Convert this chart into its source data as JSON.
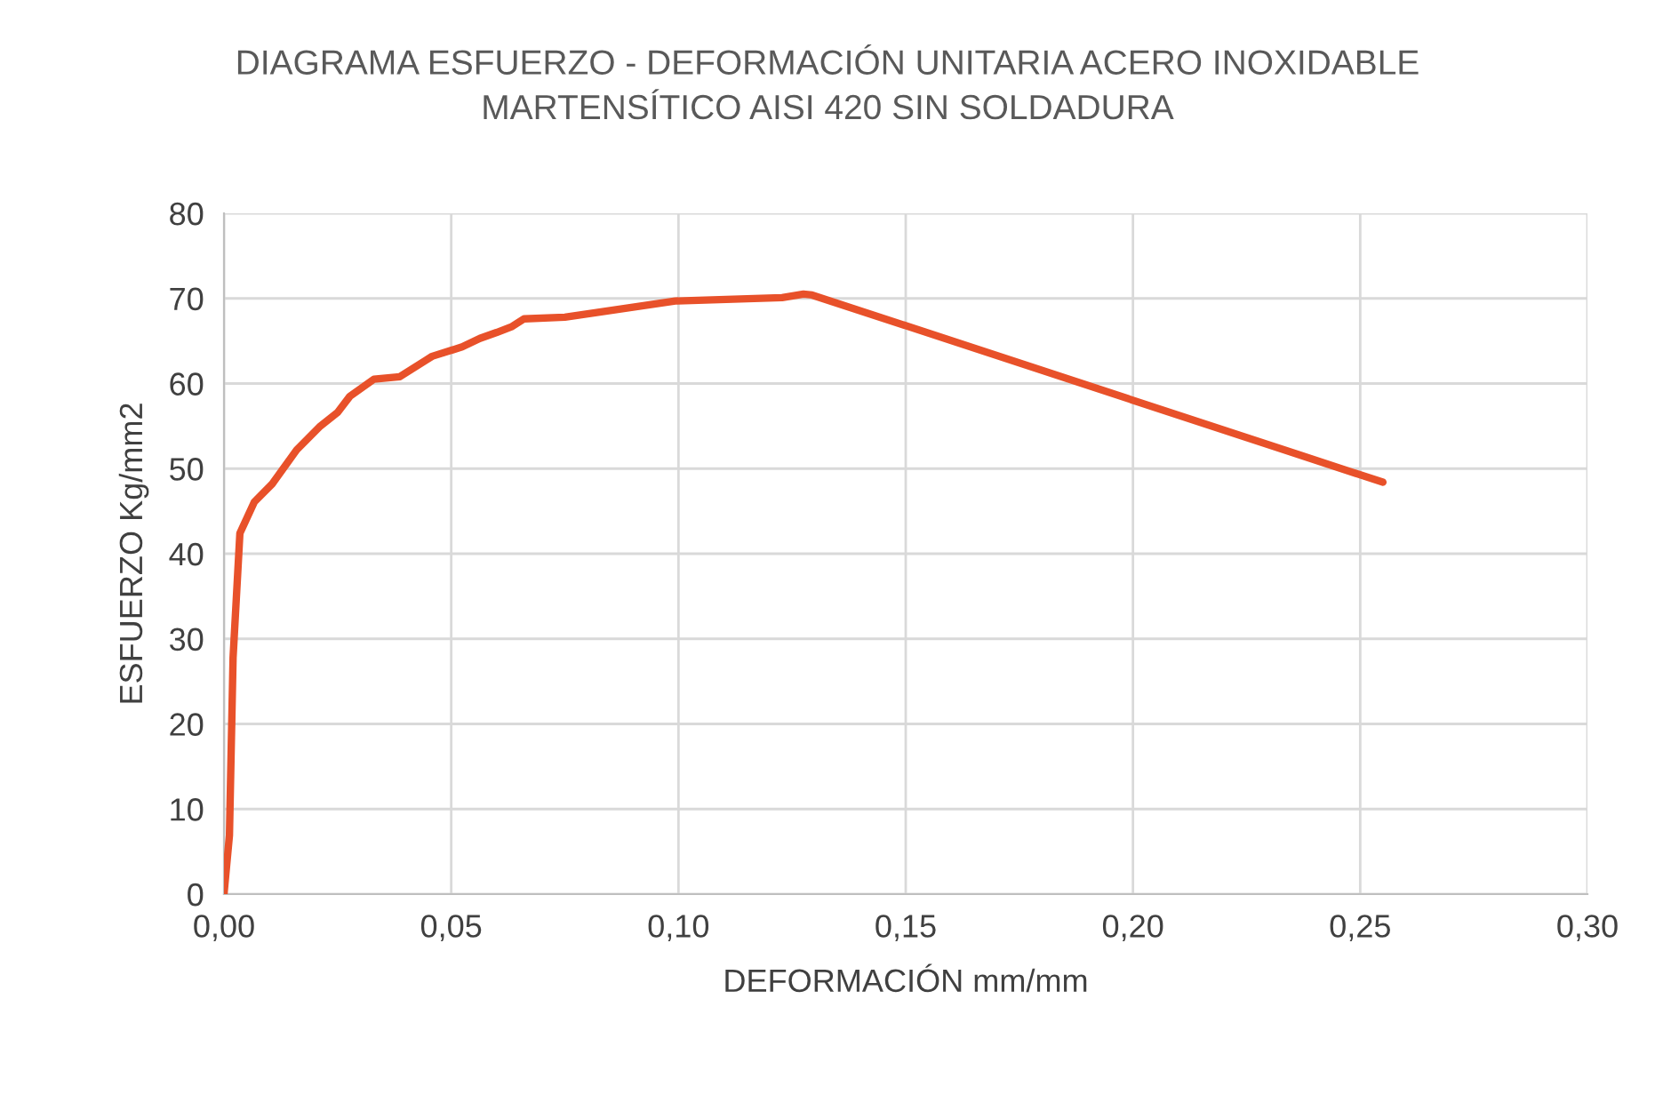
{
  "chart_data": {
    "type": "line",
    "title": "DIAGRAMA ESFUERZO - DEFORMACIÓN UNITARIA ACERO INOXIDABLE\nMARTENSÍTICO AISI 420 SIN SOLDADURA",
    "xlabel": "DEFORMACIÓN mm/mm",
    "ylabel": "ESFUERZO Kg/mm2",
    "x": [
      0,
      0.0012,
      0.002,
      0.0035,
      0.0067,
      0.0106,
      0.016,
      0.021,
      0.025,
      0.0277,
      0.033,
      0.0387,
      0.0446,
      0.0458,
      0.0524,
      0.0563,
      0.06,
      0.0634,
      0.066,
      0.075,
      0.0993,
      0.1228,
      0.1275,
      0.1294,
      0.255
    ],
    "series": [
      {
        "color": "#e8512a",
        "values": [
          0,
          6.9,
          27.8,
          42.4,
          46.1,
          48.2,
          52.2,
          54.9,
          56.6,
          58.5,
          60.5,
          60.8,
          62.8,
          63.2,
          64.3,
          65.3,
          66.0,
          66.7,
          67.6,
          67.8,
          69.7,
          70.1,
          70.5,
          70.4,
          48.4
        ]
      }
    ],
    "xlim": [
      0,
      0.3
    ],
    "xticks": [
      {
        "value": 0,
        "label": "0,00"
      },
      {
        "value": 0.05,
        "label": "0,05"
      },
      {
        "value": 0.1,
        "label": "0,10"
      },
      {
        "value": 0.15,
        "label": "0,15"
      },
      {
        "value": 0.2,
        "label": "0,20"
      },
      {
        "value": 0.25,
        "label": "0,25"
      },
      {
        "value": 0.3,
        "label": "0,30"
      }
    ],
    "ylim": [
      0,
      80
    ],
    "yticks": [
      0,
      10,
      20,
      30,
      40,
      50,
      60,
      70,
      80
    ],
    "grid": true,
    "marker": "none",
    "line_style": "solid",
    "legend": false
  }
}
